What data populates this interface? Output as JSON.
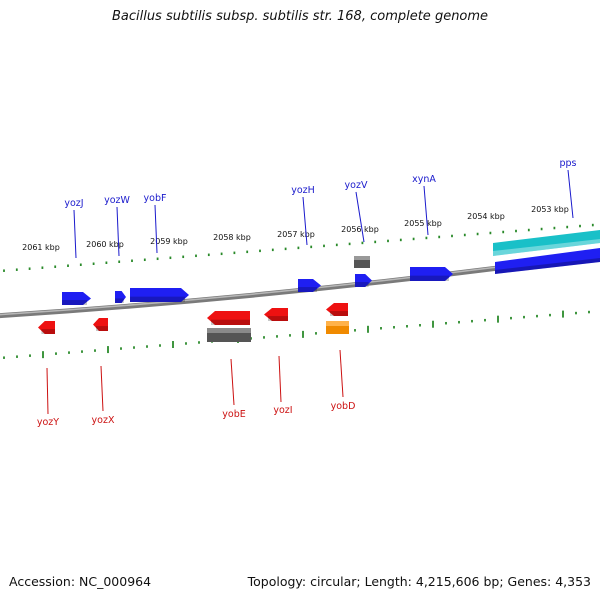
{
  "title": "Bacillus subtilis subsp. subtilis str. 168, complete genome",
  "accession_text": "Accession: NC_000964",
  "topology_text": "Topology: circular; Length: 4,215,606 bp; Genes: 4,353",
  "colors": {
    "background": "#ffffff",
    "backbone": "#8a8a8a",
    "tick": "#2a8a2a",
    "forward_gene": "#1f1ff2",
    "reverse_gene": "#ee1111",
    "grey_feature": "#555555",
    "orange_feature": "#f08a00",
    "teal_feature": "#19c0c8",
    "forward_label": "#1a1acc",
    "reverse_label": "#cc1111"
  },
  "scale_labels": [
    "2061 kbp",
    "2060 kbp",
    "2059 kbp",
    "2058 kbp",
    "2057 kbp",
    "2056 kbp",
    "2055 kbp",
    "2054 kbp",
    "2053 kbp"
  ],
  "forward_gene_labels": [
    "yozJ",
    "yozW",
    "yobF",
    "yozH",
    "yozV",
    "xynA",
    "pps"
  ],
  "reverse_gene_labels": [
    "yozY",
    "yozX",
    "yobE",
    "yozI",
    "yobD"
  ]
}
